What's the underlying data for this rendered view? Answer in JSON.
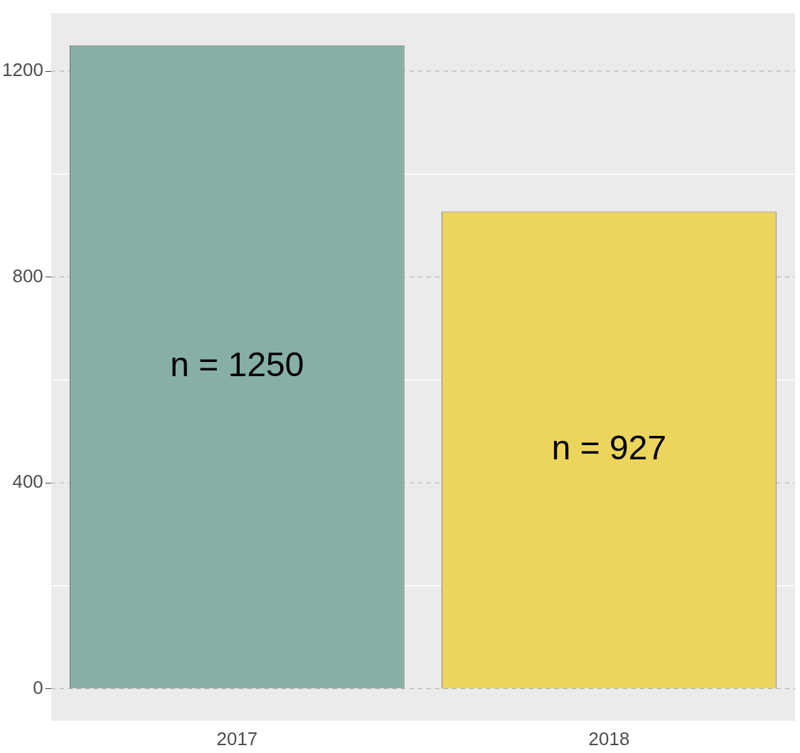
{
  "chart_data": {
    "type": "bar",
    "categories": [
      "2017",
      "2018"
    ],
    "values": [
      1250,
      927
    ],
    "colors": [
      "#86b0a5",
      "#ecd55c"
    ],
    "value_labels": [
      "n = 1250",
      "n = 927"
    ],
    "ylim": [
      -62.5,
      1312.5
    ],
    "yticks": [
      0,
      400,
      800,
      1200
    ],
    "grid": "y",
    "legend": false
  }
}
